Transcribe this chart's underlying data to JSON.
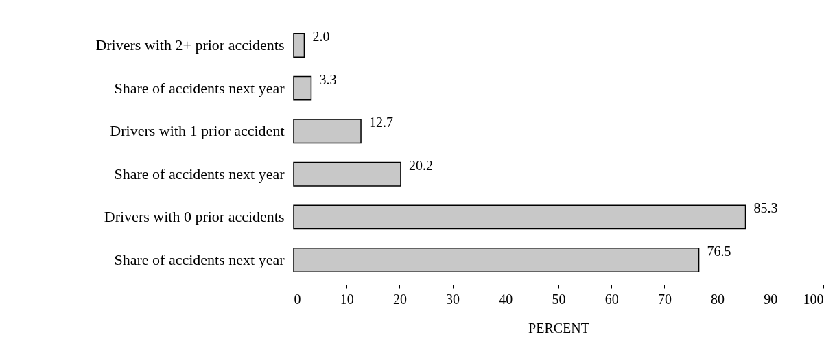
{
  "chart_data": {
    "type": "bar",
    "orientation": "horizontal",
    "categories": [
      "Drivers with 2+ prior accidents",
      "Share of accidents next year",
      "Drivers with 1 prior accident",
      "Share of accidents next year",
      "Drivers with 0 prior accidents",
      "Share of accidents next year"
    ],
    "values": [
      2.0,
      3.3,
      12.7,
      20.2,
      85.3,
      76.5
    ],
    "value_labels": [
      "2.0",
      "3.3",
      "12.7",
      "20.2",
      "85.3",
      "76.5"
    ],
    "color": "#c8c8c8",
    "xlabel": "PERCENT",
    "xlim": [
      0,
      100
    ],
    "xticks": [
      0,
      10,
      20,
      30,
      40,
      50,
      60,
      70,
      80,
      90,
      100
    ],
    "grid": false
  }
}
